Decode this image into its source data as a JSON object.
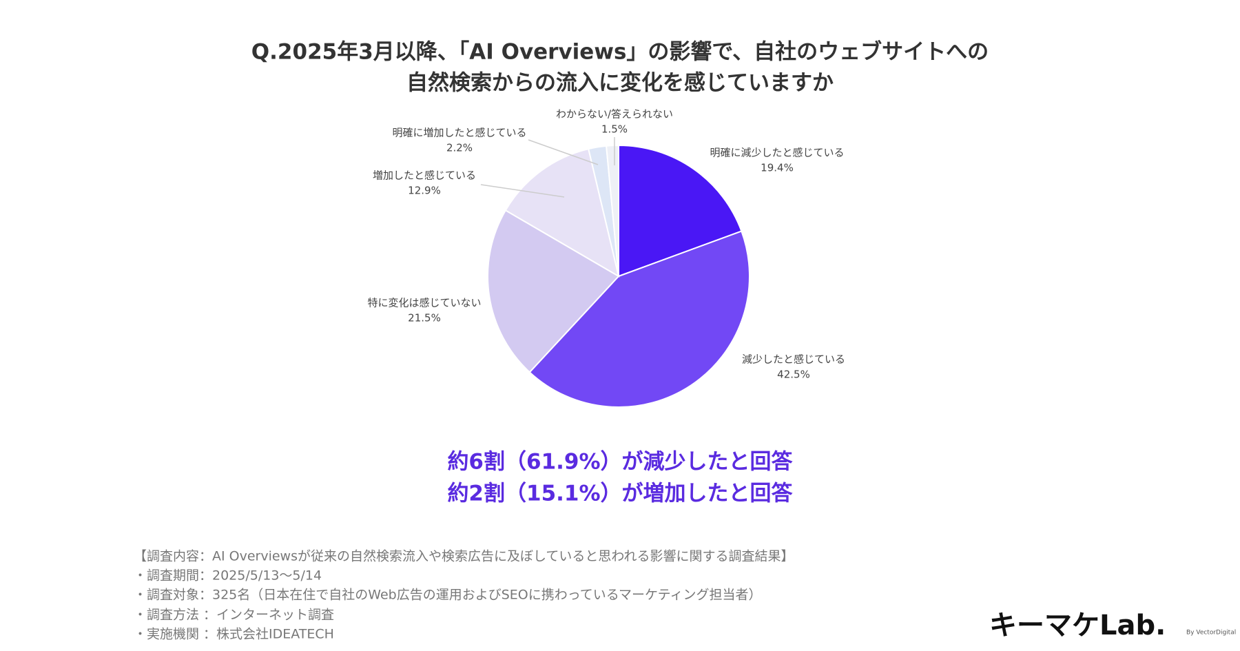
{
  "chart_data": {
    "type": "pie",
    "title": [
      "Q.2025年3月以降、「AI Overviews」の影響で、自社のウェブサイトへの",
      "自然検索からの流入に変化を感じていますか"
    ],
    "categories": [
      "明確に減少したと感じている",
      "減少したと感じている",
      "特に変化は感じていない",
      "増加したと感じている",
      "明確に増加したと感じている",
      "わからない/答えられない"
    ],
    "values": [
      19.4,
      42.5,
      21.5,
      12.9,
      2.2,
      1.5
    ],
    "value_labels": [
      "19.4%",
      "42.5%",
      "21.5%",
      "12.9%",
      "2.2%",
      "1.5%"
    ],
    "colors": [
      "#4a17f5",
      "#7248f5",
      "#d3caf1",
      "#e7e2f6",
      "#dde6f6",
      "#eef0f6"
    ]
  },
  "summary": [
    "約6割（61.9%）が減少したと回答",
    "約2割（15.1%）が増加したと回答"
  ],
  "notes": [
    "【調査内容：AI Overviewsが従来の自然検索流入や検索広告に及ぼしていると思われる影響に関する調査結果】",
    "・調査期間：2025/5/13〜5/14",
    "・調査対象：325名（日本在住で自社のWeb広告の運用およびSEOに携わっているマーケティング担当者）",
    "・調査方法 ：インターネット調査",
    "・実施機関 ：株式会社IDEATECH"
  ],
  "logo": {
    "name": "キーマケLab.",
    "sub": "By VectorDigital"
  }
}
